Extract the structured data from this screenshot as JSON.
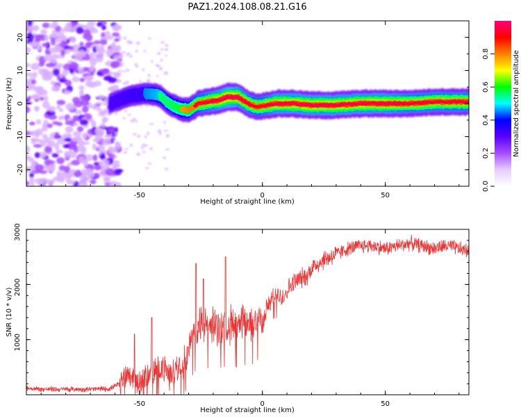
{
  "title": "PAZ1.2024.108.08.21.G16",
  "chart_data": [
    {
      "type": "heatmap",
      "xlabel": "Height of straight line (km)",
      "ylabel": "Frequency (Hz)",
      "xlim": [
        -96,
        84
      ],
      "ylim": [
        -25,
        25
      ],
      "xticks": [
        -50,
        0,
        50
      ],
      "yticks": [
        -20,
        -10,
        0,
        10,
        20
      ],
      "colorbar": {
        "label": "Normalized spectral amplitude",
        "range": [
          0,
          1
        ],
        "ticks": [
          0.0,
          0.2,
          0.4,
          0.6,
          0.8
        ],
        "colormap": [
          "#ffffff",
          "#e6ccff",
          "#a64dff",
          "#5a00ff",
          "#0000ff",
          "#00ffff",
          "#00ff00",
          "#ffff00",
          "#ff8000",
          "#ff0000",
          "#ff0080"
        ]
      },
      "ridge": {
        "x": [
          -62,
          -55,
          -48,
          -42,
          -38,
          -34,
          -30,
          -26,
          -22,
          -18,
          -14,
          -10,
          -6,
          -2,
          2,
          6,
          12,
          20,
          30,
          40,
          50,
          60,
          70,
          84
        ],
        "freq": [
          0,
          2,
          3,
          2.5,
          0,
          -1.5,
          -2,
          0,
          0.5,
          1,
          2,
          2,
          0,
          -1,
          -0.5,
          0,
          0,
          -0.5,
          -0.5,
          0,
          0,
          0,
          0.5,
          0.5
        ],
        "amplitude": [
          0.35,
          0.4,
          0.45,
          0.55,
          0.6,
          0.65,
          0.75,
          0.85,
          0.9,
          0.95,
          1.0,
          0.95,
          0.9,
          0.85,
          0.9,
          0.95,
          0.95,
          0.95,
          0.95,
          0.95,
          0.95,
          0.9,
          0.9,
          0.9
        ]
      },
      "noise_region": {
        "x_range": [
          -96,
          -58
        ],
        "freq_range": [
          -25,
          25
        ],
        "amplitude_range": [
          0.1,
          0.35
        ]
      }
    },
    {
      "type": "line",
      "xlabel": "Height of straight line (km)",
      "ylabel": "SNR (10 * v/v)",
      "xlim": [
        -96,
        84
      ],
      "ylim": [
        0,
        3000
      ],
      "xticks": [
        -50,
        0,
        50
      ],
      "yticks": [
        1000,
        2000,
        3000
      ],
      "color": "#ee3333",
      "series": [
        {
          "x": [
            -96,
            -90,
            -80,
            -70,
            -62,
            -58,
            -55,
            -52,
            -50,
            -48,
            -45,
            -42,
            -40,
            -38,
            -35,
            -32,
            -30,
            -28,
            -25,
            -22,
            -20,
            -18,
            -15,
            -12,
            -10,
            -8,
            -5,
            -2,
            0,
            2,
            5,
            8,
            10,
            12,
            15,
            18,
            20,
            25,
            30,
            35,
            40,
            45,
            50,
            55,
            60,
            65,
            70,
            75,
            80,
            84
          ],
          "y": [
            120,
            100,
            100,
            100,
            110,
            200,
            400,
            300,
            200,
            300,
            400,
            500,
            450,
            350,
            500,
            600,
            800,
            1100,
            1300,
            1200,
            1300,
            1200,
            1250,
            1300,
            1200,
            1300,
            1250,
            1400,
            1300,
            1600,
            1800,
            1750,
            1900,
            2000,
            2100,
            2150,
            2300,
            2450,
            2550,
            2650,
            2700,
            2700,
            2650,
            2700,
            2750,
            2700,
            2650,
            2700,
            2650,
            2600
          ]
        }
      ],
      "spikes": [
        {
          "x": -27,
          "y": 2380
        },
        {
          "x": -15,
          "y": 2500
        },
        {
          "x": -24,
          "y": 2100
        },
        {
          "x": -52,
          "y": 1100
        },
        {
          "x": -45,
          "y": 1400
        }
      ]
    }
  ]
}
